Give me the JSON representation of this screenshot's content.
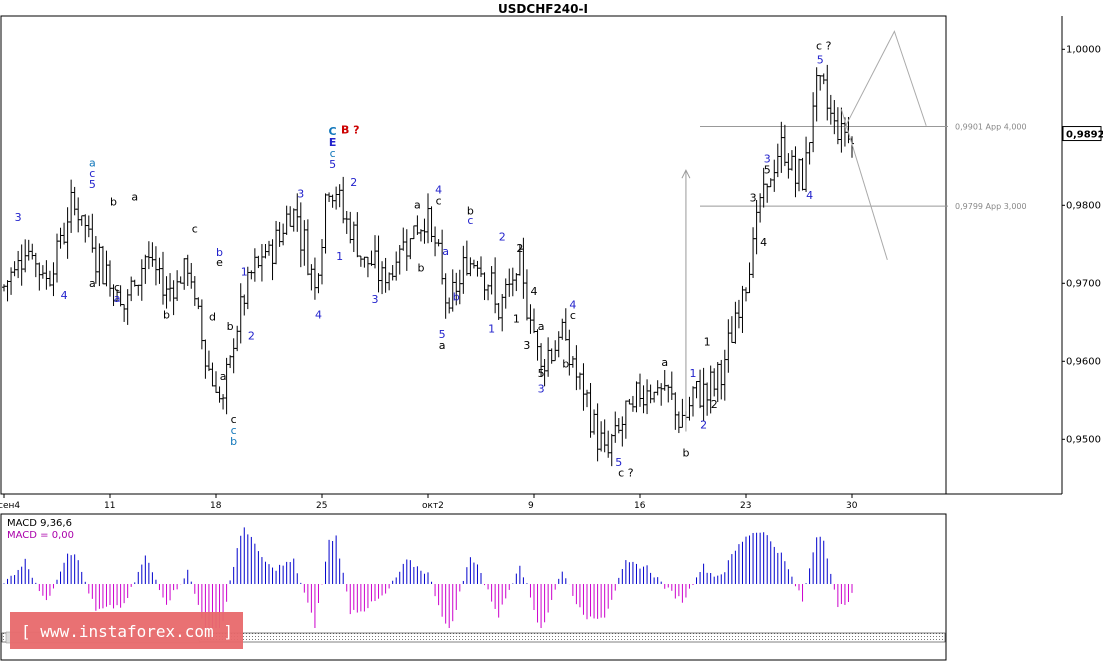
{
  "title": "USDCHF240-I",
  "price_axis": {
    "labels": [
      "1,0000",
      "0,9800",
      "0,9700",
      "0,9600",
      "0,9500"
    ],
    "values": [
      1.0,
      0.98,
      0.97,
      0.96,
      0.95
    ],
    "current_price": "0,9892"
  },
  "time_axis": {
    "labels": [
      "сен4",
      "11",
      "18",
      "25",
      "окт2",
      "9",
      "16",
      "23",
      "30"
    ],
    "indices": [
      0,
      30,
      60,
      90,
      120,
      150,
      180,
      210,
      240
    ]
  },
  "levels": [
    {
      "label": "0,9901 App 4,000",
      "value": 0.9901
    },
    {
      "label": "0,9799 App 3,000",
      "value": 0.9799
    }
  ],
  "indicator": {
    "name_label": "MACD 9,36,6",
    "value_label": "MACD = 0,00",
    "positive_color": "#0000cc",
    "negative_color": "#cc00cc"
  },
  "watermark": "[ www.instaforex.com ]",
  "watermark_color": "#e8696b",
  "chart_data": {
    "type": "ohlc",
    "symbol": "USDCHF240-I",
    "y_range": [
      0.9435,
      1.0035
    ],
    "price_path_idx": [
      0,
      6,
      12,
      20,
      26,
      34,
      40,
      46,
      52,
      58,
      62,
      66,
      70,
      76,
      82,
      88,
      92,
      96,
      102,
      108,
      114,
      120,
      126,
      130,
      134,
      140,
      146,
      152,
      158,
      164,
      170,
      176,
      182,
      188,
      192,
      196,
      200,
      204,
      210,
      214,
      220,
      226,
      230,
      236,
      240
    ],
    "price_path_val": [
      0.9695,
      0.975,
      0.9705,
      0.9805,
      0.974,
      0.967,
      0.9735,
      0.969,
      0.972,
      0.959,
      0.9545,
      0.965,
      0.971,
      0.9745,
      0.98,
      0.97,
      0.9835,
      0.979,
      0.973,
      0.9705,
      0.976,
      0.9785,
      0.9665,
      0.9715,
      0.974,
      0.9665,
      0.9715,
      0.96,
      0.9635,
      0.9555,
      0.948,
      0.953,
      0.957,
      0.9555,
      0.952,
      0.956,
      0.9565,
      0.9595,
      0.971,
      0.98,
      0.987,
      0.983,
      0.996,
      0.99,
      0.9892
    ],
    "bar_count": 241,
    "wave_labels": [
      {
        "t": "3",
        "i": 4,
        "p": 0.978,
        "c": "#2222cc"
      },
      {
        "t": "4",
        "i": 17,
        "p": 0.968,
        "c": "#2222cc"
      },
      {
        "t": "a",
        "i": 25,
        "p": 0.985,
        "c": "#1177bb"
      },
      {
        "t": "c",
        "i": 25,
        "p": 0.9836,
        "c": "#2222cc"
      },
      {
        "t": "5",
        "i": 25,
        "p": 0.9822,
        "c": "#2222cc"
      },
      {
        "t": "a",
        "i": 25,
        "p": 0.9695,
        "c": "#000000"
      },
      {
        "t": "b",
        "i": 31,
        "p": 0.98,
        "c": "#000000"
      },
      {
        "t": "a",
        "i": 37,
        "p": 0.9806,
        "c": "#000000"
      },
      {
        "t": "c",
        "i": 32,
        "p": 0.969,
        "c": "#000000"
      },
      {
        "t": "a",
        "i": 32,
        "p": 0.9676,
        "c": "#2222cc"
      },
      {
        "t": "b",
        "i": 46,
        "p": 0.9655,
        "c": "#000000"
      },
      {
        "t": "c",
        "i": 54,
        "p": 0.9765,
        "c": "#000000"
      },
      {
        "t": "b",
        "i": 61,
        "p": 0.9735,
        "c": "#2222cc"
      },
      {
        "t": "e",
        "i": 61,
        "p": 0.9722,
        "c": "#000000"
      },
      {
        "t": "d",
        "i": 59,
        "p": 0.9652,
        "c": "#000000"
      },
      {
        "t": "b",
        "i": 64,
        "p": 0.964,
        "c": "#000000"
      },
      {
        "t": "1",
        "i": 68,
        "p": 0.971,
        "c": "#2222cc"
      },
      {
        "t": "2",
        "i": 70,
        "p": 0.9628,
        "c": "#2222cc"
      },
      {
        "t": "a",
        "i": 62,
        "p": 0.9576,
        "c": "#000000"
      },
      {
        "t": "c",
        "i": 65,
        "p": 0.9521,
        "c": "#000000"
      },
      {
        "t": "c",
        "i": 65,
        "p": 0.9507,
        "c": "#1177bb"
      },
      {
        "t": "b",
        "i": 65,
        "p": 0.9493,
        "c": "#1177bb"
      },
      {
        "t": "3",
        "i": 84,
        "p": 0.981,
        "c": "#2222cc"
      },
      {
        "t": "4",
        "i": 89,
        "p": 0.9655,
        "c": "#2222cc"
      },
      {
        "t": "C",
        "i": 93,
        "p": 0.989,
        "c": "#1177bb"
      },
      {
        "t": "E",
        "i": 93,
        "p": 0.9876,
        "c": "#2222cc"
      },
      {
        "t": "c",
        "i": 93,
        "p": 0.9862,
        "c": "#1177bb"
      },
      {
        "t": "5",
        "i": 93,
        "p": 0.9848,
        "c": "#2222cc"
      },
      {
        "t": "B ?",
        "i": 98,
        "p": 0.9892,
        "c": "#cc0000"
      },
      {
        "t": "1",
        "i": 95,
        "p": 0.973,
        "c": "#2222cc"
      },
      {
        "t": "2",
        "i": 99,
        "p": 0.9825,
        "c": "#2222cc"
      },
      {
        "t": "3",
        "i": 105,
        "p": 0.9675,
        "c": "#2222cc"
      },
      {
        "t": "a",
        "i": 117,
        "p": 0.9796,
        "c": "#000000"
      },
      {
        "t": "b",
        "i": 118,
        "p": 0.9715,
        "c": "#000000"
      },
      {
        "t": "4",
        "i": 123,
        "p": 0.9815,
        "c": "#2222cc"
      },
      {
        "t": "c",
        "i": 123,
        "p": 0.9801,
        "c": "#000000"
      },
      {
        "t": "a",
        "i": 125,
        "p": 0.9736,
        "c": "#2222cc"
      },
      {
        "t": "b",
        "i": 128,
        "p": 0.9678,
        "c": "#2222cc"
      },
      {
        "t": "5",
        "i": 124,
        "p": 0.963,
        "c": "#2222cc"
      },
      {
        "t": "a",
        "i": 124,
        "p": 0.9616,
        "c": "#000000"
      },
      {
        "t": "b",
        "i": 132,
        "p": 0.9788,
        "c": "#000000"
      },
      {
        "t": "c",
        "i": 132,
        "p": 0.9776,
        "c": "#2222cc"
      },
      {
        "t": "2",
        "i": 141,
        "p": 0.9755,
        "c": "#2222cc"
      },
      {
        "t": "2",
        "i": 146,
        "p": 0.974,
        "c": "#000000"
      },
      {
        "t": "1",
        "i": 138,
        "p": 0.9637,
        "c": "#2222cc"
      },
      {
        "t": "4",
        "i": 150,
        "p": 0.9685,
        "c": "#000000"
      },
      {
        "t": "1",
        "i": 145,
        "p": 0.965,
        "c": "#000000"
      },
      {
        "t": "a",
        "i": 152,
        "p": 0.964,
        "c": "#000000"
      },
      {
        "t": "3",
        "i": 148,
        "p": 0.9616,
        "c": "#000000"
      },
      {
        "t": "5",
        "i": 152,
        "p": 0.958,
        "c": "#000000"
      },
      {
        "t": "3",
        "i": 152,
        "p": 0.956,
        "c": "#2222cc"
      },
      {
        "t": "4",
        "i": 161,
        "p": 0.9668,
        "c": "#2222cc"
      },
      {
        "t": "c",
        "i": 161,
        "p": 0.9654,
        "c": "#000000"
      },
      {
        "t": "b",
        "i": 159,
        "p": 0.9592,
        "c": "#000000"
      },
      {
        "t": "5",
        "i": 174,
        "p": 0.9466,
        "c": "#2222cc"
      },
      {
        "t": "c ?",
        "i": 176,
        "p": 0.9452,
        "c": "#000000"
      },
      {
        "t": "a",
        "i": 187,
        "p": 0.9594,
        "c": "#000000"
      },
      {
        "t": "b",
        "i": 193,
        "p": 0.9478,
        "c": "#000000"
      },
      {
        "t": "1",
        "i": 195,
        "p": 0.958,
        "c": "#2222cc"
      },
      {
        "t": "1",
        "i": 199,
        "p": 0.962,
        "c": "#000000"
      },
      {
        "t": "2",
        "i": 198,
        "p": 0.9514,
        "c": "#2222cc"
      },
      {
        "t": "2",
        "i": 201,
        "p": 0.954,
        "c": "#000000"
      },
      {
        "t": "3",
        "i": 212,
        "p": 0.9805,
        "c": "#000000"
      },
      {
        "t": "4",
        "i": 215,
        "p": 0.9748,
        "c": "#000000"
      },
      {
        "t": "3",
        "i": 216,
        "p": 0.9855,
        "c": "#2222cc"
      },
      {
        "t": "5",
        "i": 216,
        "p": 0.9841,
        "c": "#000000"
      },
      {
        "t": "4",
        "i": 228,
        "p": 0.9808,
        "c": "#2222cc"
      },
      {
        "t": "c ?",
        "i": 232,
        "p": 1.0,
        "c": "#000000"
      },
      {
        "t": "5",
        "i": 231,
        "p": 0.9982,
        "c": "#2222cc"
      }
    ],
    "projection": {
      "up_arrow_idx": 193,
      "up_arrow_from": 0.951,
      "up_arrow_to": 0.9845,
      "path_upper": [
        {
          "i": 238,
          "p": 0.99
        },
        {
          "i": 252,
          "p": 1.0023
        },
        {
          "i": 261,
          "p": 0.9902
        }
      ],
      "path_lower": [
        {
          "i": 237,
          "p": 0.9923
        },
        {
          "i": 250,
          "p": 0.973
        }
      ]
    }
  }
}
